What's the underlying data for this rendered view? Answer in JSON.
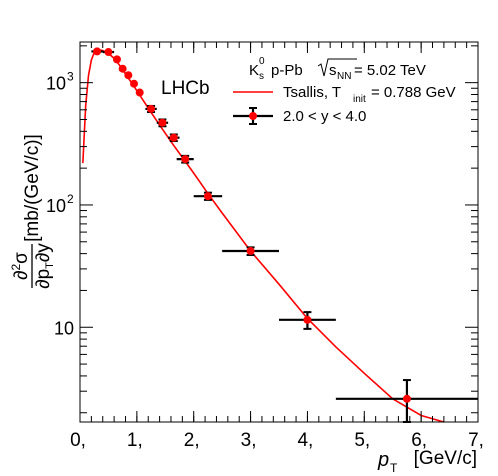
{
  "chart_data": {
    "type": "scatter",
    "title": "",
    "experiment_label": "LHCb",
    "annotation": {
      "particle": "K",
      "particle_sub": "s",
      "particle_sup": "0",
      "system": "p-Pb",
      "energy_prefix": "s",
      "energy_sub": "NN",
      "energy_value": "= 5.02 TeV"
    },
    "xlabel": {
      "symbol": "p",
      "sub": "T",
      "unit": "[GeV/c]"
    },
    "ylabel": {
      "frac_top_left": "∂",
      "frac_top_sup": "2",
      "frac_top_right": "σ",
      "frac_bottom": "∂p",
      "frac_bottom_sub": "T",
      "frac_bottom_right": "∂y",
      "unit": "[mb/(GeV/c)]"
    },
    "xlim": [
      0,
      7
    ],
    "ylim": [
      1.68,
      2150
    ],
    "yscale": "log",
    "x_tick_labels": [
      "0,",
      "1,",
      "2,",
      "3,",
      "4,",
      "5,",
      "6,",
      "7,"
    ],
    "x_tick_values": [
      0,
      1,
      2,
      3,
      4,
      5,
      6,
      7
    ],
    "y_tick_labels": [
      "10",
      "10",
      "10"
    ],
    "y_tick_sups": [
      "",
      "2",
      "3"
    ],
    "y_tick_values": [
      10,
      100,
      1000
    ],
    "legend": {
      "position": "top-right",
      "entries": [
        {
          "label": "Tsallis, T",
          "label_sub": "init",
          "label_suffix": "= 0.788 GeV",
          "style": "line"
        },
        {
          "label": "2.0 < y < 4.0",
          "style": "marker"
        }
      ]
    },
    "colors": {
      "curve": "#ff0000",
      "marker": "#ff0000",
      "errorbar": "#000000"
    },
    "series": [
      {
        "name": "2.0 < y < 4.0",
        "points": [
          {
            "x": 0.3,
            "xerr": 0.1,
            "y": 1800,
            "yerr": 90
          },
          {
            "x": 0.5,
            "xerr": 0.1,
            "y": 1780,
            "yerr": 90
          },
          {
            "x": 0.65,
            "xerr": 0.05,
            "y": 1550,
            "yerr": 80
          },
          {
            "x": 0.75,
            "xerr": 0.05,
            "y": 1300,
            "yerr": 70
          },
          {
            "x": 0.85,
            "xerr": 0.05,
            "y": 1150,
            "yerr": 60
          },
          {
            "x": 0.95,
            "xerr": 0.05,
            "y": 980,
            "yerr": 50
          },
          {
            "x": 1.05,
            "xerr": 0.05,
            "y": 830,
            "yerr": 45
          },
          {
            "x": 1.25,
            "xerr": 0.1,
            "y": 610,
            "yerr": 35
          },
          {
            "x": 1.45,
            "xerr": 0.1,
            "y": 470,
            "yerr": 30
          },
          {
            "x": 1.65,
            "xerr": 0.1,
            "y": 355,
            "yerr": 22
          },
          {
            "x": 1.85,
            "xerr": 0.15,
            "y": 237,
            "yerr": 15
          },
          {
            "x": 2.25,
            "xerr": 0.25,
            "y": 118,
            "yerr": 8
          },
          {
            "x": 3.0,
            "xerr": 0.5,
            "y": 42,
            "yerr": 3
          },
          {
            "x": 4.0,
            "xerr": 0.5,
            "y": 11.5,
            "yerr": 1.8
          },
          {
            "x": 5.75,
            "xerr": 1.25,
            "y": 2.6,
            "yerr": 1.1
          }
        ]
      }
    ],
    "fit_curve": {
      "name": "Tsallis, T_init = 0.788 GeV",
      "x": [
        0.05,
        0.1,
        0.15,
        0.2,
        0.25,
        0.3,
        0.35,
        0.4,
        0.5,
        0.6,
        0.7,
        0.8,
        0.9,
        1.0,
        1.2,
        1.4,
        1.6,
        1.8,
        2.0,
        2.25,
        2.5,
        3.0,
        3.5,
        4.0,
        4.5,
        5.0,
        5.5,
        6.0,
        6.4
      ],
      "y": [
        220,
        650,
        1150,
        1530,
        1760,
        1830,
        1850,
        1830,
        1740,
        1580,
        1380,
        1180,
        1010,
        860,
        620,
        450,
        330,
        245,
        182,
        124,
        86,
        42,
        22.5,
        11.8,
        6.9,
        4.2,
        2.6,
        1.9,
        1.68
      ]
    }
  }
}
